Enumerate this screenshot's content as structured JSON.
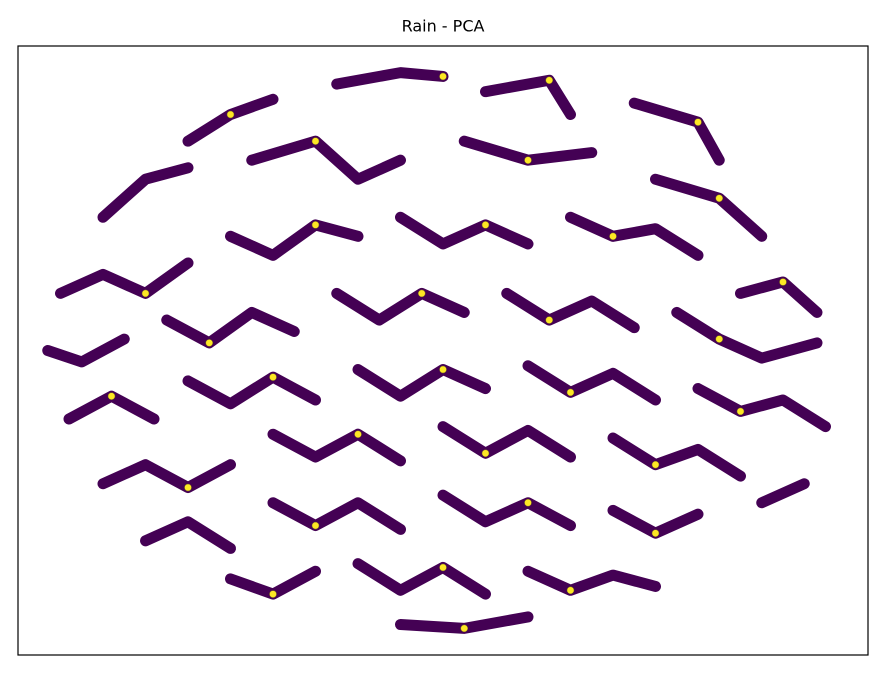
{
  "chart_data": {
    "type": "scatter",
    "title": "Rain - PCA",
    "xlim": [
      -10,
      10
    ],
    "ylim": [
      -8,
      8
    ],
    "series": [
      {
        "type": "line",
        "color": "#440154",
        "x": [
          -6,
          -5,
          -4,
          null,
          -2.5,
          -1,
          0,
          null,
          1,
          2.5,
          3,
          null,
          4.5,
          6,
          6.5,
          null,
          -8,
          -7,
          -6,
          null,
          -4.5,
          -3,
          -2,
          -1,
          null,
          0.5,
          2,
          3.5,
          null,
          5,
          6.5,
          7.5,
          null,
          -9,
          -8,
          -7,
          -6,
          null,
          -5,
          -4,
          -3,
          -2,
          null,
          -1,
          0,
          1,
          2,
          null,
          3,
          4,
          5,
          6,
          null,
          7,
          8,
          8.8,
          null,
          -9.3,
          -8.5,
          -7.5,
          null,
          -6.5,
          -5.5,
          -4.5,
          -3.5,
          null,
          -2.5,
          -1.5,
          -0.5,
          0.5,
          null,
          1.5,
          2.5,
          3.5,
          4.5,
          null,
          5.5,
          6.5,
          7.5,
          8.8,
          null,
          -8.8,
          -7.8,
          -6.8,
          null,
          -6,
          -5,
          -4,
          -3,
          null,
          -2,
          -1,
          0,
          1,
          null,
          2,
          3,
          4,
          5,
          null,
          6,
          7,
          8,
          9,
          null,
          -8,
          -7,
          -6,
          -5,
          null,
          -4,
          -3,
          -2,
          -1,
          null,
          0,
          1,
          2,
          3,
          null,
          4,
          5,
          6,
          7,
          null,
          7.5,
          8.5,
          null,
          -7,
          -6,
          -5,
          null,
          -4,
          -3,
          -2,
          -1,
          null,
          0,
          1,
          2,
          3,
          null,
          4,
          5,
          6,
          null,
          -5,
          -4,
          -3,
          null,
          -2,
          -1,
          0,
          1,
          null,
          2,
          3,
          4,
          5,
          null,
          -1,
          0.5,
          2
        ],
        "y": [
          5.5,
          6.2,
          6.6,
          null,
          7,
          7.3,
          7.2,
          null,
          6.8,
          7.1,
          6.2,
          null,
          6.5,
          6,
          5,
          null,
          3.5,
          4.5,
          4.8,
          null,
          5,
          5.5,
          4.5,
          5,
          null,
          5.5,
          5,
          5.2,
          null,
          4.5,
          4,
          3,
          null,
          1.5,
          2,
          1.5,
          2.3,
          null,
          3,
          2.5,
          3.3,
          3,
          null,
          3.5,
          2.8,
          3.3,
          2.8,
          null,
          3.5,
          3,
          3.2,
          2.5,
          null,
          1.5,
          1.8,
          1,
          null,
          0,
          -0.3,
          0.3,
          null,
          0.8,
          0.2,
          1,
          0.5,
          null,
          1.5,
          0.8,
          1.5,
          1,
          null,
          1.5,
          0.8,
          1.3,
          0.6,
          null,
          1,
          0.3,
          -0.2,
          0.2,
          null,
          -1.8,
          -1.2,
          -1.8,
          null,
          -0.8,
          -1.4,
          -0.7,
          -1.3,
          null,
          -0.5,
          -1.2,
          -0.5,
          -1,
          null,
          -0.4,
          -1.1,
          -0.6,
          -1.3,
          null,
          -1,
          -1.6,
          -1.3,
          -2,
          null,
          -3.5,
          -3,
          -3.6,
          -3,
          null,
          -2.2,
          -2.8,
          -2.2,
          -2.9,
          null,
          -2,
          -2.7,
          -2.1,
          -2.8,
          null,
          -2.3,
          -3,
          -2.6,
          -3.3,
          null,
          -4,
          -3.5,
          null,
          -5,
          -4.5,
          -5.2,
          null,
          -4,
          -4.6,
          -4,
          -4.7,
          null,
          -3.8,
          -4.5,
          -4,
          -4.6,
          null,
          -4.2,
          -4.8,
          -4.3,
          null,
          -6,
          -6.4,
          -5.8,
          null,
          -5.6,
          -6.3,
          -5.7,
          -6.4,
          null,
          -5.8,
          -6.3,
          -5.9,
          -6.2,
          null,
          -7.2,
          -7.3,
          -7
        ]
      },
      {
        "type": "scatter",
        "color": "#fde725",
        "x": [
          -5,
          0,
          2.5,
          6,
          -3,
          2,
          6.5,
          -7,
          -3,
          1,
          4,
          8,
          -5.5,
          -0.5,
          2.5,
          6.5,
          -7.8,
          -4,
          0,
          3,
          7,
          -6,
          -2,
          1,
          5,
          -3,
          2,
          5,
          -4,
          0,
          3,
          0.5
        ],
        "y": [
          6.2,
          7.2,
          7.1,
          6,
          5.5,
          5,
          4,
          1.5,
          3.3,
          3.3,
          3,
          1.8,
          0.2,
          1.5,
          0.8,
          0.3,
          -1.2,
          -0.7,
          -0.5,
          -1.1,
          -1.6,
          -3.6,
          -2.2,
          -2.7,
          -3,
          -4.6,
          -4,
          -4.8,
          -6.4,
          -5.7,
          -6.3,
          -7.3
        ]
      }
    ]
  }
}
